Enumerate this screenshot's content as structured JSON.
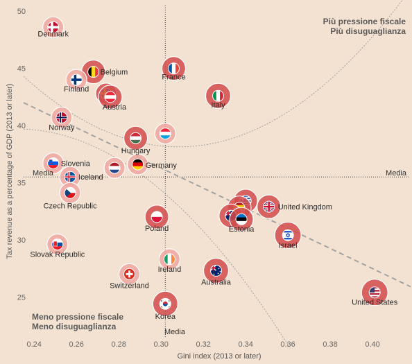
{
  "chart_data": {
    "type": "scatter",
    "title": "",
    "xlabel": "Gini index (2013 or later)",
    "ylabel": "Tax revenue as a percentage of GDP (2013 or later)",
    "xlim": [
      0.235,
      0.418
    ],
    "ylim": [
      21.5,
      50.5
    ],
    "xticks": [
      0.24,
      0.26,
      0.28,
      0.3,
      0.32,
      0.34,
      0.36,
      0.38,
      0.4
    ],
    "xtick_labels": [
      "0.24",
      "0.26",
      "0.28",
      "0.30",
      "0.32",
      "0.34",
      "0.36",
      "0.38",
      "0.40"
    ],
    "yticks": [
      25,
      30,
      35,
      40,
      45,
      50
    ],
    "ytick_labels": [
      "25",
      "30",
      "35",
      "40",
      "45",
      "50"
    ],
    "grid": false,
    "mean_x": 0.302,
    "mean_y": 35.5,
    "mean_label_x": "Media",
    "mean_label_y": "Media",
    "quadrant_top_right": [
      "Più pressione fiscale",
      "Più disuguaglianza"
    ],
    "quadrant_bottom_left": [
      "Meno pressione fiscale",
      "Meno disuguaglianza"
    ],
    "points": [
      {
        "country": "Denmark",
        "x": 0.249,
        "y": 48.6,
        "label": "Denmark"
      },
      {
        "country": "France",
        "x": 0.306,
        "y": 45.0,
        "label": "France"
      },
      {
        "country": "Belgium",
        "x": 0.268,
        "y": 44.7,
        "label": "Belgium"
      },
      {
        "country": "Finland",
        "x": 0.26,
        "y": 44.0,
        "label": "Finland"
      },
      {
        "country": "Sweden",
        "x": 0.274,
        "y": 42.8,
        "label": ""
      },
      {
        "country": "Austria",
        "x": 0.276,
        "y": 42.5,
        "label": "Austria"
      },
      {
        "country": "Italy",
        "x": 0.327,
        "y": 42.6,
        "label": "Italy"
      },
      {
        "country": "Norway",
        "x": 0.253,
        "y": 40.7,
        "label": "Norway"
      },
      {
        "country": "Hungary",
        "x": 0.288,
        "y": 38.9,
        "label": "Hungary"
      },
      {
        "country": "Luxembourg",
        "x": 0.302,
        "y": 39.3,
        "label": ""
      },
      {
        "country": "Slovenia",
        "x": 0.249,
        "y": 36.7,
        "label": "Slovenia"
      },
      {
        "country": "Germany",
        "x": 0.289,
        "y": 36.6,
        "label": "Germany"
      },
      {
        "country": "Netherlands",
        "x": 0.278,
        "y": 36.3,
        "label": ""
      },
      {
        "country": "Iceland",
        "x": 0.257,
        "y": 35.5,
        "label": "Iceland"
      },
      {
        "country": "Czech Republic",
        "x": 0.257,
        "y": 34.1,
        "label": "Czech Republic"
      },
      {
        "country": "Greece",
        "x": 0.34,
        "y": 33.4,
        "label": ""
      },
      {
        "country": "Spain",
        "x": 0.337,
        "y": 32.8,
        "label": ""
      },
      {
        "country": "United Kingdom",
        "x": 0.351,
        "y": 32.9,
        "label": "United Kingdom"
      },
      {
        "country": "New Zealand",
        "x": 0.333,
        "y": 32.1,
        "label": ""
      },
      {
        "country": "Estonia",
        "x": 0.338,
        "y": 31.8,
        "label": "Estonia"
      },
      {
        "country": "Poland",
        "x": 0.298,
        "y": 32.0,
        "label": "Poland"
      },
      {
        "country": "Israel",
        "x": 0.36,
        "y": 30.4,
        "label": "Israel"
      },
      {
        "country": "Slovak Republic",
        "x": 0.251,
        "y": 29.6,
        "label": "Slovak Republic"
      },
      {
        "country": "Ireland",
        "x": 0.304,
        "y": 28.3,
        "label": "Ireland"
      },
      {
        "country": "Australia",
        "x": 0.326,
        "y": 27.3,
        "label": "Australia"
      },
      {
        "country": "Switzerland",
        "x": 0.285,
        "y": 27.0,
        "label": "Switzerland"
      },
      {
        "country": "United States",
        "x": 0.401,
        "y": 25.4,
        "label": "United States"
      },
      {
        "country": "Korea",
        "x": 0.302,
        "y": 24.4,
        "label": "Korea"
      }
    ],
    "colors": {
      "background": "#f3e2d1",
      "bubble": "#d24b4b",
      "bubble_light": "#eea6a0",
      "label": "#2a2a2a",
      "axis_text": "#666666",
      "trend": "#a2a2a2",
      "mean_line": "#333333"
    }
  }
}
